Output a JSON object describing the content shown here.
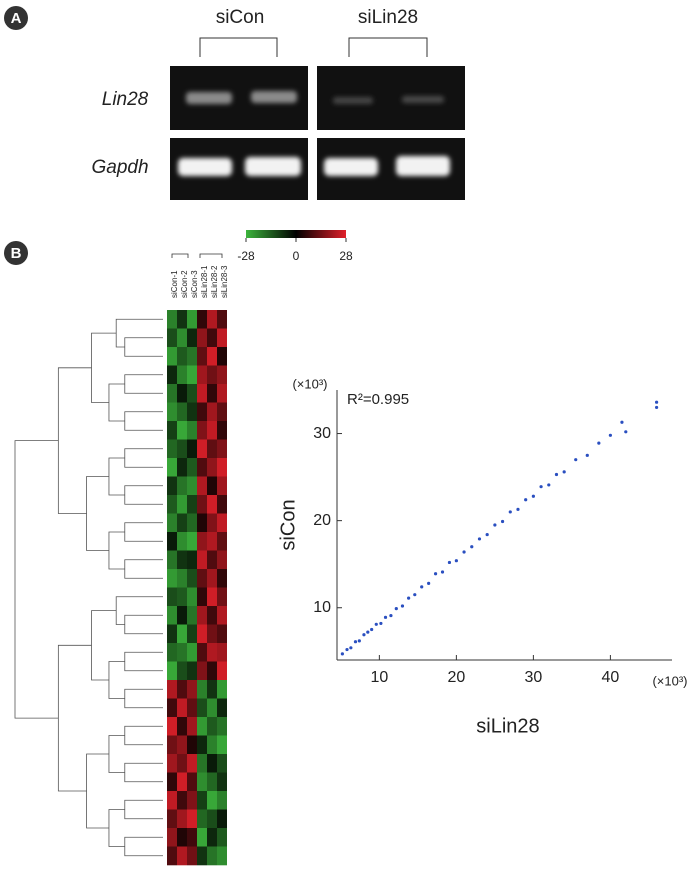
{
  "panel_a": {
    "label": "A",
    "groups": [
      "siCon",
      "siLin28"
    ],
    "genes": [
      "Lin28",
      "Gapdh"
    ]
  },
  "panel_b": {
    "label": "B"
  },
  "chart_data": [
    {
      "type": "heatmap",
      "columns": [
        "siCon-1",
        "siCon-2",
        "siCon-3",
        "siLin28-1",
        "siLin28-2",
        "siLin28-3"
      ],
      "colorbar_ticks": [
        -28,
        0,
        28
      ],
      "colors": {
        "low": "#3cb43c",
        "mid": "#000000",
        "high": "#e0202a"
      },
      "values": [
        [
          -20,
          -8,
          -24,
          6,
          22,
          10
        ],
        [
          -12,
          -22,
          -6,
          18,
          8,
          24
        ],
        [
          -24,
          -14,
          -18,
          12,
          26,
          4
        ],
        [
          -6,
          -20,
          -26,
          20,
          14,
          18
        ],
        [
          -18,
          -4,
          -12,
          24,
          6,
          22
        ],
        [
          -22,
          -16,
          -8,
          8,
          20,
          12
        ],
        [
          -10,
          -26,
          -20,
          16,
          24,
          6
        ],
        [
          -16,
          -12,
          -4,
          26,
          12,
          16
        ],
        [
          -26,
          -6,
          -14,
          10,
          18,
          26
        ],
        [
          -8,
          -18,
          -22,
          22,
          4,
          20
        ],
        [
          -14,
          -24,
          -10,
          14,
          26,
          8
        ],
        [
          -20,
          -10,
          -16,
          4,
          16,
          24
        ],
        [
          -4,
          -22,
          -26,
          18,
          22,
          12
        ],
        [
          -18,
          -8,
          -6,
          24,
          10,
          18
        ],
        [
          -24,
          -20,
          -12,
          12,
          20,
          6
        ],
        [
          -12,
          -14,
          -22,
          6,
          26,
          14
        ],
        [
          -22,
          -4,
          -18,
          20,
          8,
          22
        ],
        [
          -8,
          -26,
          -10,
          26,
          14,
          10
        ],
        [
          -16,
          -18,
          -24,
          10,
          22,
          20
        ],
        [
          -26,
          -12,
          -8,
          16,
          6,
          26
        ],
        [
          22,
          10,
          18,
          -20,
          -8,
          -24
        ],
        [
          8,
          24,
          12,
          -12,
          -22,
          -6
        ],
        [
          26,
          6,
          20,
          -24,
          -14,
          -18
        ],
        [
          14,
          18,
          4,
          -6,
          -20,
          -26
        ],
        [
          20,
          14,
          24,
          -18,
          -4,
          -12
        ],
        [
          6,
          26,
          10,
          -22,
          -16,
          -8
        ],
        [
          24,
          8,
          16,
          -10,
          -26,
          -20
        ],
        [
          12,
          20,
          26,
          -16,
          -12,
          -4
        ],
        [
          18,
          4,
          8,
          -26,
          -6,
          -14
        ],
        [
          10,
          22,
          14,
          -8,
          -18,
          -22
        ]
      ]
    },
    {
      "type": "scatter",
      "annotation": "R²=0.995",
      "x_label": "siLin28",
      "y_label": "siCon",
      "x_unit": "(×10³)",
      "y_unit": "(×10³)",
      "color": "#2a4fc0",
      "xlim": [
        4.5,
        48
      ],
      "ylim": [
        4,
        35
      ],
      "xticks": [
        10,
        20,
        30,
        40
      ],
      "yticks": [
        10,
        20,
        30
      ],
      "x": [
        5.2,
        5.8,
        6.3,
        6.9,
        7.4,
        8,
        8.5,
        9,
        9.6,
        10.2,
        10.8,
        11.5,
        12.2,
        13,
        13.8,
        14.6,
        15.5,
        16.4,
        17.3,
        18.2,
        19.1,
        20,
        21,
        22,
        23,
        24,
        25,
        26,
        27,
        28,
        29,
        30,
        31,
        32,
        33,
        34,
        35.5,
        37,
        38.5,
        40,
        41.5,
        42,
        46,
        46
      ],
      "y": [
        4.7,
        5.2,
        5.4,
        6.1,
        6.2,
        6.9,
        7.2,
        7.5,
        8.1,
        8.2,
        8.9,
        9.1,
        9.9,
        10.2,
        11.1,
        11.5,
        12.4,
        12.8,
        13.9,
        14.1,
        15.2,
        15.4,
        16.4,
        17.0,
        17.9,
        18.4,
        19.5,
        19.9,
        21.0,
        21.3,
        22.4,
        22.8,
        23.9,
        24.1,
        25.3,
        25.6,
        27.0,
        27.5,
        28.9,
        29.8,
        31.3,
        30.2,
        33.6,
        33.0
      ]
    }
  ]
}
